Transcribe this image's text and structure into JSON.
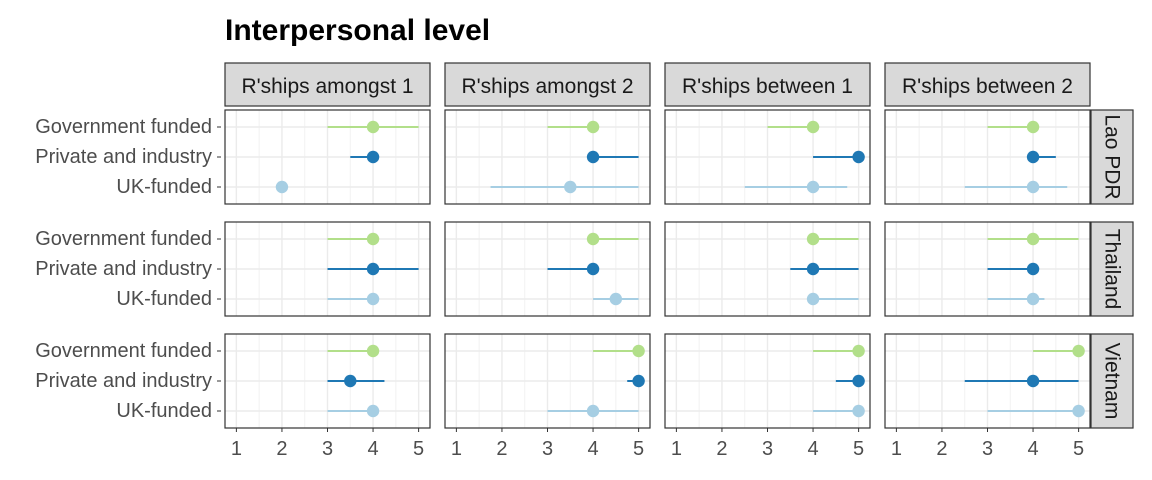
{
  "chart_data": {
    "type": "dot-range",
    "title": "Interpersonal level",
    "facet_columns": [
      "R'ships amongst 1",
      "R'ships amongst 2",
      "R'ships between 1",
      "R'ships between 2"
    ],
    "facet_rows": [
      "Lao PDR",
      "Thailand",
      "Vietnam"
    ],
    "categories": [
      "Government funded",
      "Private and industry",
      "UK-funded"
    ],
    "xlim": [
      0.75,
      5.25
    ],
    "x_ticks": [
      1,
      2,
      3,
      4,
      5
    ],
    "grid": true,
    "colors": {
      "Government funded": "#b2df8a",
      "Private and industry": "#1f78b4",
      "UK-funded": "#a6cee3"
    },
    "panels": [
      {
        "row": "Lao PDR",
        "col": "R'ships amongst 1",
        "points": [
          {
            "category": "Government funded",
            "value": 4,
            "low": 3,
            "high": 5
          },
          {
            "category": "Private and industry",
            "value": 4,
            "low": 3.5,
            "high": 4
          },
          {
            "category": "UK-funded",
            "value": 2,
            "low": 2,
            "high": 2
          }
        ]
      },
      {
        "row": "Lao PDR",
        "col": "R'ships amongst 2",
        "points": [
          {
            "category": "Government funded",
            "value": 4,
            "low": 3,
            "high": 4
          },
          {
            "category": "Private and industry",
            "value": 4,
            "low": 4,
            "high": 5
          },
          {
            "category": "UK-funded",
            "value": 3.5,
            "low": 1.75,
            "high": 5
          }
        ]
      },
      {
        "row": "Lao PDR",
        "col": "R'ships between 1",
        "points": [
          {
            "category": "Government funded",
            "value": 4,
            "low": 3,
            "high": 4
          },
          {
            "category": "Private and industry",
            "value": 5,
            "low": 4,
            "high": 5
          },
          {
            "category": "UK-funded",
            "value": 4,
            "low": 2.5,
            "high": 4.75
          }
        ]
      },
      {
        "row": "Lao PDR",
        "col": "R'ships between 2",
        "points": [
          {
            "category": "Government funded",
            "value": 4,
            "low": 3,
            "high": 4
          },
          {
            "category": "Private and industry",
            "value": 4,
            "low": 4,
            "high": 4.5
          },
          {
            "category": "UK-funded",
            "value": 4,
            "low": 2.5,
            "high": 4.75
          }
        ]
      },
      {
        "row": "Thailand",
        "col": "R'ships amongst 1",
        "points": [
          {
            "category": "Government funded",
            "value": 4,
            "low": 3,
            "high": 4
          },
          {
            "category": "Private and industry",
            "value": 4,
            "low": 3,
            "high": 5
          },
          {
            "category": "UK-funded",
            "value": 4,
            "low": 3,
            "high": 4
          }
        ]
      },
      {
        "row": "Thailand",
        "col": "R'ships amongst 2",
        "points": [
          {
            "category": "Government funded",
            "value": 4,
            "low": 4,
            "high": 5
          },
          {
            "category": "Private and industry",
            "value": 4,
            "low": 3,
            "high": 4
          },
          {
            "category": "UK-funded",
            "value": 4.5,
            "low": 4,
            "high": 5
          }
        ]
      },
      {
        "row": "Thailand",
        "col": "R'ships between 1",
        "points": [
          {
            "category": "Government funded",
            "value": 4,
            "low": 4,
            "high": 5
          },
          {
            "category": "Private and industry",
            "value": 4,
            "low": 3.5,
            "high": 5
          },
          {
            "category": "UK-funded",
            "value": 4,
            "low": 4,
            "high": 5
          }
        ]
      },
      {
        "row": "Thailand",
        "col": "R'ships between 2",
        "points": [
          {
            "category": "Government funded",
            "value": 4,
            "low": 3,
            "high": 5
          },
          {
            "category": "Private and industry",
            "value": 4,
            "low": 3,
            "high": 4
          },
          {
            "category": "UK-funded",
            "value": 4,
            "low": 3,
            "high": 4.25
          }
        ]
      },
      {
        "row": "Vietnam",
        "col": "R'ships amongst 1",
        "points": [
          {
            "category": "Government funded",
            "value": 4,
            "low": 3,
            "high": 4
          },
          {
            "category": "Private and industry",
            "value": 3.5,
            "low": 3,
            "high": 4.25
          },
          {
            "category": "UK-funded",
            "value": 4,
            "low": 3,
            "high": 4
          }
        ]
      },
      {
        "row": "Vietnam",
        "col": "R'ships amongst 2",
        "points": [
          {
            "category": "Government funded",
            "value": 5,
            "low": 4,
            "high": 5
          },
          {
            "category": "Private and industry",
            "value": 5,
            "low": 4.75,
            "high": 5
          },
          {
            "category": "UK-funded",
            "value": 4,
            "low": 3,
            "high": 5
          }
        ]
      },
      {
        "row": "Vietnam",
        "col": "R'ships between 1",
        "points": [
          {
            "category": "Government funded",
            "value": 5,
            "low": 4,
            "high": 5
          },
          {
            "category": "Private and industry",
            "value": 5,
            "low": 4.5,
            "high": 5
          },
          {
            "category": "UK-funded",
            "value": 5,
            "low": 4,
            "high": 5
          }
        ]
      },
      {
        "row": "Vietnam",
        "col": "R'ships between 2",
        "points": [
          {
            "category": "Government funded",
            "value": 5,
            "low": 4,
            "high": 5
          },
          {
            "category": "Private and industry",
            "value": 4,
            "low": 2.5,
            "high": 5
          },
          {
            "category": "UK-funded",
            "value": 5,
            "low": 3,
            "high": 5
          }
        ]
      }
    ]
  }
}
